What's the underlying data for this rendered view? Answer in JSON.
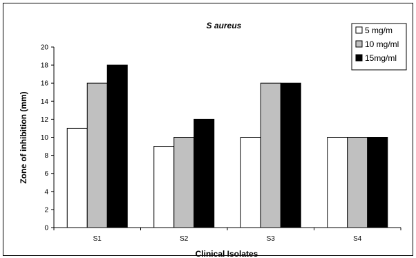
{
  "chart_data": {
    "type": "bar",
    "title": "S aureus",
    "xlabel": "Clinical Isolates",
    "ylabel": "Zone of inhibition (mm)",
    "categories": [
      "S1",
      "S2",
      "S3",
      "S4"
    ],
    "ylim": [
      0,
      20
    ],
    "yticks": [
      0,
      2,
      4,
      6,
      8,
      10,
      12,
      14,
      16,
      18,
      20
    ],
    "grid": false,
    "legend_position": "top-right",
    "series": [
      {
        "name": "5 mg/m",
        "color": "#ffffff",
        "values": [
          11,
          9,
          10,
          10
        ]
      },
      {
        "name": "10 mg/ml",
        "color": "#c0c0c0",
        "values": [
          16,
          10,
          16,
          10
        ]
      },
      {
        "name": "15mg/ml",
        "color": "#000000",
        "values": [
          18,
          12,
          16,
          10
        ]
      }
    ]
  }
}
